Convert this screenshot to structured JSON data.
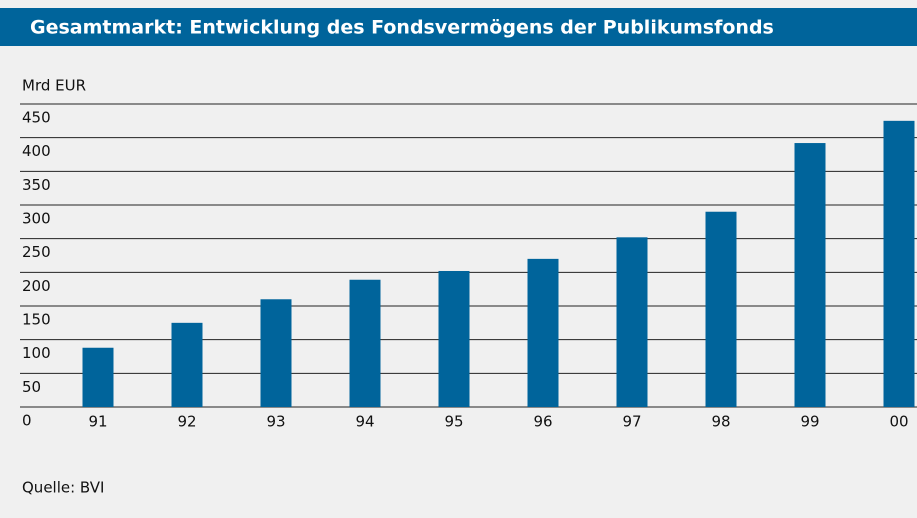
{
  "chart_data": {
    "type": "bar",
    "title": "Gesamtmarkt: Entwicklung des Fondsvermögens der Publikumsfonds",
    "y_label": "Mrd EUR",
    "source": "Quelle: BVI",
    "categories": [
      "91",
      "92",
      "93",
      "94",
      "95",
      "96",
      "97",
      "98",
      "99",
      "00"
    ],
    "values": [
      88,
      125,
      160,
      189,
      202,
      220,
      252,
      290,
      392,
      425
    ],
    "color": "#00649b",
    "ylim": [
      0,
      450
    ],
    "yticks": [
      0,
      50,
      100,
      150,
      200,
      250,
      300,
      350,
      400,
      450
    ],
    "grid": true
  }
}
